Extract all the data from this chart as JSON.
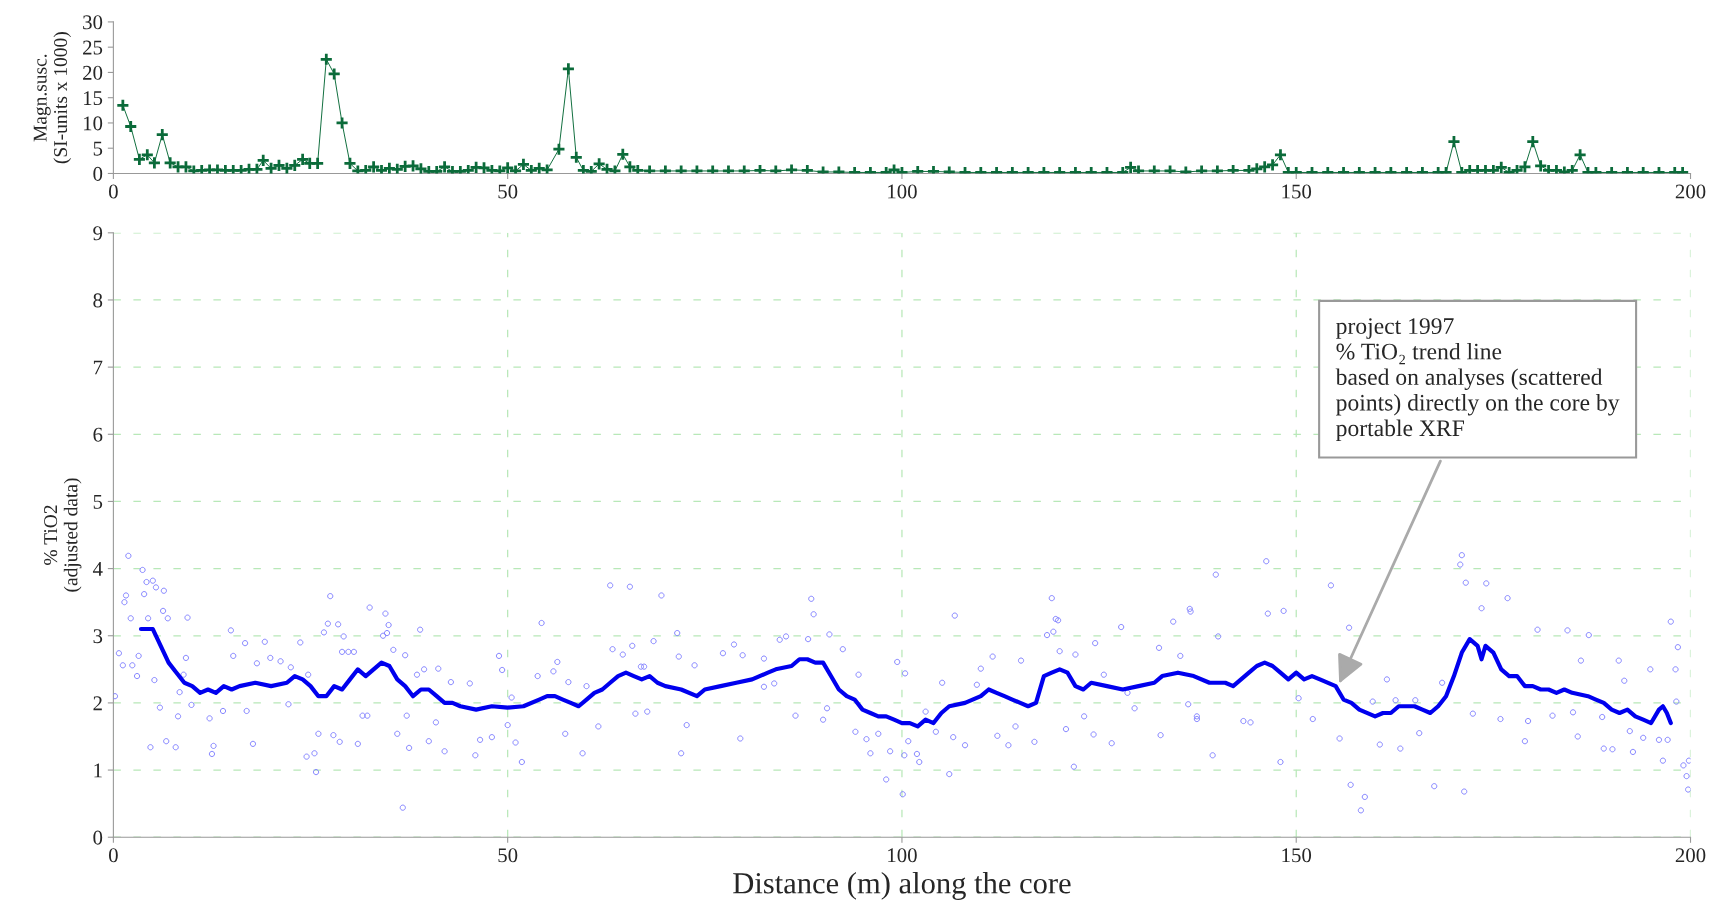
{
  "chart_data": [
    {
      "type": "line",
      "ylabel": "Magn.susc.\n(SI-units x 1000)",
      "xlim": [
        0,
        200
      ],
      "xticks": [
        0,
        50,
        100,
        150,
        200
      ],
      "ylim": [
        0,
        30
      ],
      "yticks": [
        0,
        5,
        10,
        15,
        20,
        25,
        30
      ],
      "grid": false,
      "marker": "cross",
      "line_style": "solid",
      "series": [
        {
          "color": "#0b6b3a",
          "x": [
            1.2,
            2.2,
            3.3,
            4.3,
            5.2,
            6.2,
            7.2,
            8.2,
            9.2,
            10.2,
            11.2,
            12.2,
            13.2,
            14.2,
            15.2,
            16.2,
            17.2,
            18.2,
            19,
            20,
            21,
            22,
            23,
            24,
            24.9,
            25.9,
            27,
            28,
            29,
            30,
            31,
            32,
            33,
            34,
            35,
            36,
            37,
            38,
            39,
            40,
            41,
            42,
            43,
            44,
            45,
            46,
            47,
            48,
            49,
            50,
            51,
            52,
            53,
            54,
            55,
            56.5,
            57.7,
            58.7,
            59.6,
            60.6,
            61.6,
            62.6,
            63.6,
            64.6,
            65.5,
            66.5,
            68,
            70,
            72,
            74,
            76,
            78,
            80,
            82,
            84,
            86,
            88,
            90,
            92,
            94,
            96,
            98,
            99,
            100,
            102,
            104,
            106,
            108,
            110,
            112,
            114,
            116,
            118,
            120,
            122,
            124,
            126,
            128,
            129,
            130,
            132,
            134,
            136,
            138,
            140,
            142,
            144,
            145,
            146,
            147,
            148,
            149,
            150,
            152,
            154,
            156,
            158,
            160,
            162,
            164,
            166,
            168,
            169,
            170,
            171,
            172,
            173,
            174,
            175,
            176,
            177,
            178,
            179,
            180,
            181,
            182,
            183,
            184,
            185,
            186,
            187,
            188,
            190,
            192,
            194,
            196,
            198,
            199
          ],
          "values": [
            13.5,
            9.3,
            2.8,
            3.7,
            2.1,
            7.7,
            2.1,
            1.3,
            1.3,
            0.5,
            0.6,
            0.7,
            0.7,
            0.6,
            0.6,
            0.6,
            0.8,
            0.8,
            2.6,
            1.0,
            1.6,
            1.0,
            1.6,
            2.8,
            2.0,
            2.0,
            22.6,
            19.7,
            10,
            2.0,
            0.5,
            0.6,
            1.3,
            0.6,
            1.0,
            0.8,
            1.4,
            1.5,
            0.9,
            0.4,
            0.4,
            1.3,
            0.4,
            0.4,
            0.6,
            1.2,
            1.1,
            0.6,
            0.5,
            1.1,
            0.5,
            1.8,
            0.6,
            1.0,
            0.7,
            4.8,
            20.7,
            3.2,
            0.6,
            0.4,
            1.9,
            0.8,
            0.5,
            3.8,
            1.3,
            0.6,
            0.5,
            0.5,
            0.5,
            0.5,
            0.5,
            0.5,
            0.5,
            0.6,
            0.5,
            0.7,
            0.6,
            0.3,
            0.3,
            0.2,
            0.2,
            0.2,
            0.7,
            0.2,
            0.4,
            0.4,
            0.3,
            0.2,
            0.2,
            0.2,
            0.2,
            0.2,
            0.2,
            0.2,
            0.2,
            0.2,
            0.2,
            0.2,
            1.2,
            0.5,
            0.5,
            0.5,
            0.3,
            0.5,
            0.5,
            0.6,
            0.6,
            0.9,
            1.3,
            1.7,
            3.7,
            0.2,
            0.2,
            0.2,
            0.2,
            0.2,
            0.2,
            0.2,
            0.2,
            0.2,
            0.2,
            0.2,
            0.2,
            6.3,
            0.2,
            0.6,
            0.6,
            0.6,
            0.6,
            1.2,
            0.2,
            0.6,
            1.3,
            6.3,
            1.5,
            0.6,
            0.6,
            0.3,
            0.6,
            3.7,
            0.2,
            0.2,
            0.2,
            0.2,
            0.2,
            0.2,
            0.2,
            0.2
          ]
        }
      ]
    },
    {
      "type": "scatter",
      "xlabel": "Distance (m) along the core",
      "ylabel": "% TiO2\n(adjusted data)",
      "xlim": [
        0,
        200
      ],
      "xticks": [
        0,
        50,
        100,
        150,
        200
      ],
      "ylim": [
        0,
        9
      ],
      "yticks": [
        0,
        1,
        2,
        3,
        4,
        5,
        6,
        7,
        8,
        9
      ],
      "grid": true,
      "annotations": [
        {
          "text": "project 1997\n% TiO₂ trend line\nbased on analyses (scattered\npoints) directly on the core by\nportable XRF",
          "x": 155.3,
          "y": 2.25
        }
      ],
      "series": [
        {
          "type": "scatter",
          "marker": "circle",
          "color": "#8080ff",
          "x": [
            1.9,
            3.7,
            4.2,
            5,
            5.4,
            6.4,
            3.9,
            1.6,
            1.4,
            2.2,
            4.4,
            6.3,
            6.9,
            9.4,
            0.7,
            1.2,
            3.2,
            2.4,
            3,
            5.2,
            0.2,
            5.9,
            4.7,
            6.7,
            7.9,
            9.2,
            8.9,
            8.4,
            9.9,
            8.2,
            12.2,
            12.7,
            12.5,
            14.9,
            16.7,
            15.2,
            13.9,
            16.9,
            17.7,
            19.2,
            18.2,
            19.9,
            21.2,
            22.5,
            23.7,
            24.7,
            22.2,
            24.5,
            25.5,
            25.7,
            26,
            26.7,
            27.2,
            27.5,
            28.5,
            29.2,
            29,
            29.8,
            30.5,
            27.9,
            28.7,
            31,
            31.6,
            32.2,
            32.5,
            34.5,
            34.9,
            34.7,
            34.2,
            35.5,
            37,
            38.9,
            38.5,
            39.4,
            41.2,
            37.2,
            36,
            37.5,
            36.7,
            40,
            42,
            40.9,
            42.8,
            45.2,
            45.9,
            46.5,
            48,
            48.9,
            49.3,
            50,
            51,
            51.8,
            50.5,
            54.3,
            53.8,
            55.8,
            56.3,
            57.3,
            57.7,
            59.5,
            60,
            61.5,
            63,
            63.3,
            65.5,
            64.6,
            65.8,
            66.2,
            66.9,
            67.7,
            69.5,
            71.5,
            68.5,
            71.7,
            67.3,
            73.7,
            72.7,
            72,
            77.3,
            78.7,
            79.5,
            79.8,
            82.5,
            84.5,
            85.3,
            82.5,
            83.8,
            86.5,
            88.5,
            88.8,
            88.1,
            90.8,
            92.5,
            90.5,
            90,
            94.1,
            94.5,
            95.5,
            96,
            97,
            98,
            98.5,
            99.4,
            100.4,
            100.3,
            100.1,
            100.8,
            101.9,
            102.2,
            103,
            104.3,
            105.1,
            106,
            106.7,
            106.5,
            108,
            109.5,
            110,
            111.5,
            112.1,
            113.5,
            115.1,
            114.4,
            116.8,
            119,
            119.5,
            119.8,
            118.4,
            119.2,
            120,
            120.8,
            121.8,
            122,
            123.1,
            124.3,
            124.5,
            126.6,
            127.8,
            125.6,
            128.6,
            129.5,
            132.8,
            132.6,
            134.4,
            135.3,
            136.5,
            136.3,
            137.4,
            146.2,
            139.8,
            154.4,
            136.6,
            146.4,
            148.4,
            156.7,
            140.1,
            171,
            170.8,
            171.5,
            174.1,
            176.8,
            173.5,
            180.6,
            184.4,
            187.1,
            197.5,
            198.4,
            198.1,
            198.2,
            190.9,
            186.1,
            194.9,
            191.6,
            159.7,
            161.5,
            162.6,
            165.1,
            168.5,
            172.4,
            175.9,
            179.4,
            182.5,
            185.1,
            188.8,
            192.3,
            194,
            196,
            197.1,
            199.1,
            199.8,
            199.5,
            199.7,
            160.6,
            163.2,
            165.6,
            167.5,
            171.3,
            158.7,
            158.2,
            156.9,
            155.5,
            148,
            139.4,
            137.4,
            143.3,
            189,
            190.1,
            192.7,
            196.5,
            185.7,
            179,
            144.2,
            152.1,
            150.3
          ],
          "values": [
            4.19,
            3.98,
            3.8,
            3.82,
            3.72,
            3.67,
            3.62,
            3.6,
            3.5,
            3.26,
            3.26,
            3.37,
            3.26,
            3.27,
            2.74,
            2.56,
            2.7,
            2.56,
            2.4,
            2.34,
            2.1,
            1.93,
            1.34,
            1.43,
            1.34,
            2.67,
            2.42,
            2.16,
            1.97,
            1.8,
            1.77,
            1.36,
            1.24,
            3.08,
            2.89,
            2.7,
            1.88,
            1.88,
            1.39,
            2.91,
            2.59,
            2.67,
            2.62,
            2.53,
            2.9,
            2.42,
            1.98,
            1.2,
            1.25,
            0.97,
            1.54,
            3.05,
            3.18,
            3.59,
            3.17,
            2.99,
            2.76,
            2.76,
            2.76,
            1.52,
            1.42,
            1.39,
            1.81,
            1.81,
            3.42,
            3.33,
            3.16,
            3.04,
            3,
            2.79,
            2.71,
            3.09,
            2.42,
            2.5,
            2.51,
            1.81,
            1.54,
            1.33,
            0.44,
            1.43,
            1.28,
            1.71,
            2.31,
            2.29,
            1.22,
            1.45,
            1.49,
            2.7,
            2.49,
            1.67,
            1.41,
            1.12,
            2.08,
            3.19,
            2.4,
            2.47,
            2.61,
            1.54,
            2.31,
            1.25,
            2.25,
            1.65,
            3.75,
            2.8,
            3.73,
            2.72,
            2.85,
            1.84,
            2.54,
            1.87,
            3.6,
            3.04,
            2.92,
            2.69,
            2.54,
            2.56,
            1.67,
            1.25,
            2.74,
            2.87,
            1.47,
            2.71,
            2.66,
            2.94,
            2.99,
            2.24,
            2.29,
            1.81,
            3.55,
            3.32,
            2.95,
            3.02,
            2.8,
            1.92,
            1.75,
            1.57,
            2.42,
            1.46,
            1.25,
            1.54,
            0.86,
            1.28,
            2.61,
            2.44,
            1.22,
            0.64,
            1.43,
            1.24,
            1.12,
            1.87,
            1.57,
            2.3,
            0.94,
            3.3,
            1.49,
            1.37,
            2.27,
            2.51,
            2.69,
            1.51,
            1.37,
            2.63,
            1.65,
            1.42,
            3.56,
            3.25,
            3.23,
            3.01,
            3.06,
            2.77,
            1.61,
            1.05,
            2.72,
            1.8,
            1.53,
            2.89,
            1.4,
            3.13,
            2.42,
            2.15,
            1.92,
            1.52,
            2.82,
            3.21,
            2.7,
            3.4,
            1.98,
            1.8,
            4.11,
            3.91,
            3.75,
            3.36,
            3.33,
            3.37,
            3.12,
            2.99,
            4.2,
            4.06,
            3.79,
            3.78,
            3.56,
            3.41,
            3.09,
            3.08,
            3.01,
            3.21,
            2.83,
            2.5,
            2.02,
            2.63,
            2.63,
            2.5,
            2.33,
            2.02,
            2.35,
            2.04,
            2.04,
            2.3,
            1.84,
            1.76,
            1.73,
            1.81,
            1.86,
            1.79,
            1.58,
            1.48,
            1.45,
            1.45,
            1.07,
            1.14,
            0.91,
            0.71,
            1.38,
            1.32,
            1.55,
            0.76,
            0.68,
            0.6,
            0.4,
            0.78,
            1.47,
            1.12,
            1.22,
            1.76,
            1.73,
            1.32,
            1.31,
            1.27,
            1.14,
            1.5,
            1.43,
            1.71,
            1.76,
            2.07
          ]
        },
        {
          "type": "line",
          "marker": "none",
          "line_style": "solid",
          "color": "#0000ee",
          "x": [
            3.5,
            5,
            6,
            7,
            8,
            9,
            10,
            11,
            12,
            13,
            14,
            15,
            16,
            18,
            20,
            22,
            23,
            24,
            25,
            26,
            27,
            28,
            29,
            30,
            31,
            32,
            33,
            34,
            35,
            36,
            37,
            38,
            39,
            40,
            41,
            42,
            43,
            44,
            46,
            48,
            50,
            52,
            54,
            55,
            56,
            57,
            58,
            59,
            60,
            61,
            62,
            63,
            64,
            65,
            66,
            67,
            68,
            69,
            70,
            72,
            74,
            75,
            77,
            79,
            81,
            83,
            84,
            86,
            87,
            88,
            89,
            90,
            91,
            92,
            93,
            94,
            95,
            96,
            97,
            98,
            99,
            100,
            101,
            102,
            103,
            104,
            105,
            106,
            108,
            110,
            111,
            112,
            113,
            114,
            115,
            116,
            117,
            118,
            119,
            120,
            121,
            122,
            123,
            124,
            126,
            128,
            130,
            132,
            133,
            135,
            137,
            139,
            141,
            142,
            144,
            145,
            146,
            147,
            148,
            149,
            150,
            151,
            152,
            153,
            155,
            156,
            157,
            158,
            160,
            161,
            162,
            163,
            165,
            166,
            167,
            168,
            169,
            170,
            171,
            172,
            173,
            173.5,
            174,
            175,
            176,
            177,
            178,
            179,
            180,
            181,
            182,
            183,
            184,
            185,
            187,
            188,
            189,
            190,
            191,
            192,
            193,
            194,
            195,
            196,
            196.5,
            197,
            197.5
          ],
          "values": [
            3.1,
            3.1,
            2.85,
            2.6,
            2.45,
            2.3,
            2.25,
            2.15,
            2.2,
            2.15,
            2.25,
            2.2,
            2.25,
            2.3,
            2.25,
            2.3,
            2.4,
            2.35,
            2.25,
            2.1,
            2.1,
            2.25,
            2.2,
            2.35,
            2.5,
            2.4,
            2.5,
            2.6,
            2.55,
            2.35,
            2.25,
            2.1,
            2.2,
            2.2,
            2.1,
            2.0,
            2.0,
            1.95,
            1.9,
            1.95,
            1.93,
            1.95,
            2.05,
            2.1,
            2.1,
            2.05,
            2.0,
            1.95,
            2.05,
            2.15,
            2.2,
            2.3,
            2.4,
            2.45,
            2.4,
            2.35,
            2.4,
            2.3,
            2.25,
            2.2,
            2.1,
            2.2,
            2.25,
            2.3,
            2.35,
            2.45,
            2.5,
            2.55,
            2.65,
            2.65,
            2.6,
            2.6,
            2.4,
            2.2,
            2.1,
            2.05,
            1.9,
            1.85,
            1.8,
            1.8,
            1.75,
            1.7,
            1.7,
            1.65,
            1.75,
            1.7,
            1.85,
            1.95,
            2.0,
            2.1,
            2.2,
            2.15,
            2.1,
            2.05,
            2.0,
            1.95,
            2.0,
            2.4,
            2.45,
            2.5,
            2.45,
            2.25,
            2.2,
            2.3,
            2.25,
            2.2,
            2.25,
            2.3,
            2.4,
            2.45,
            2.4,
            2.3,
            2.3,
            2.25,
            2.45,
            2.55,
            2.6,
            2.55,
            2.45,
            2.35,
            2.45,
            2.35,
            2.4,
            2.35,
            2.25,
            2.05,
            2.0,
            1.9,
            1.8,
            1.85,
            1.85,
            1.95,
            1.95,
            1.9,
            1.85,
            1.95,
            2.1,
            2.4,
            2.75,
            2.95,
            2.85,
            2.65,
            2.85,
            2.75,
            2.5,
            2.4,
            2.4,
            2.25,
            2.25,
            2.2,
            2.2,
            2.15,
            2.2,
            2.15,
            2.1,
            2.05,
            2.0,
            1.9,
            1.85,
            1.9,
            1.8,
            1.75,
            1.7,
            1.9,
            1.95,
            1.85,
            1.7
          ]
        }
      ]
    }
  ]
}
